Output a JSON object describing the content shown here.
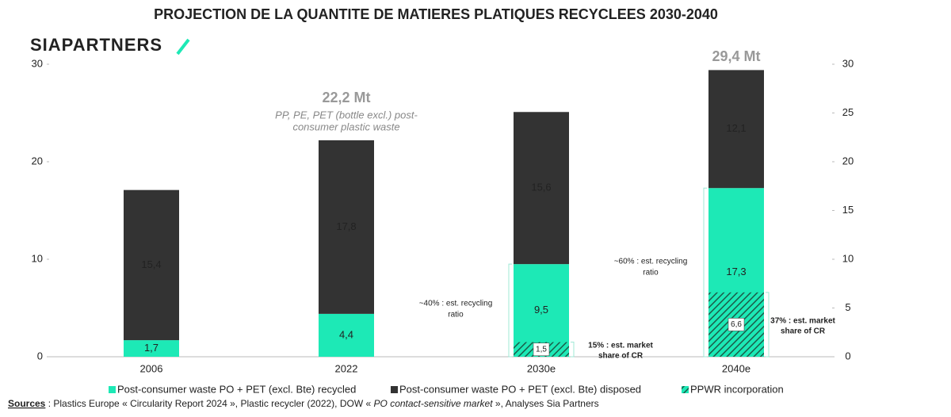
{
  "chart_data": {
    "type": "bar",
    "title": "PROJECTION DE LA QUANTITE DE MATIERES PLATIQUES RECYCLEES 2030-2040",
    "logo": "SIAPARTNERS",
    "categories": [
      "2006",
      "2022",
      "2030e",
      "2040e"
    ],
    "series": [
      {
        "name": "Post-consumer waste PO + PET (excl. Bte) recycled",
        "color": "#1de9b6",
        "values": [
          1.7,
          4.4,
          9.5,
          17.3
        ],
        "value_labels": [
          "1,7",
          "4,4",
          "9,5",
          "17,3"
        ]
      },
      {
        "name": "Post-consumer waste PO + PET (excl. Bte) disposed",
        "color": "#333333",
        "values": [
          15.4,
          17.8,
          15.6,
          12.1
        ],
        "value_labels": [
          "15,4",
          "17,8",
          "15,6",
          "12,1"
        ]
      },
      {
        "name": "PPWR incorporation",
        "color": "#1de9b6",
        "hatch": true,
        "values": [
          null,
          null,
          1.5,
          6.6
        ],
        "value_labels": [
          null,
          null,
          "1,5",
          "6,6"
        ]
      }
    ],
    "ylim": [
      0,
      30
    ],
    "yticks": [
      0,
      10,
      20,
      30
    ],
    "y2lim": [
      0,
      30
    ],
    "y2ticks": [
      0,
      5,
      10,
      15,
      20,
      25,
      30
    ],
    "annotations": [
      "22,2 Mt",
      "PP, PE, PET (bottle excl.) post-",
      "consumer plastic waste",
      "29,4 Mt",
      "~40% : est. recycling",
      "ratio",
      "~60% : est. recycling",
      "ratio",
      "15% : est. market",
      "share of CR",
      "37% : est. market",
      "share of CR"
    ],
    "sources": {
      "label": "Sources",
      "text": " : Plastics Europe « Circularity Report 2024 », Plastic recycler (2022), DOW « ",
      "italic": "PO contact-sensitive market",
      "end": " », Analyses Sia Partners"
    }
  }
}
